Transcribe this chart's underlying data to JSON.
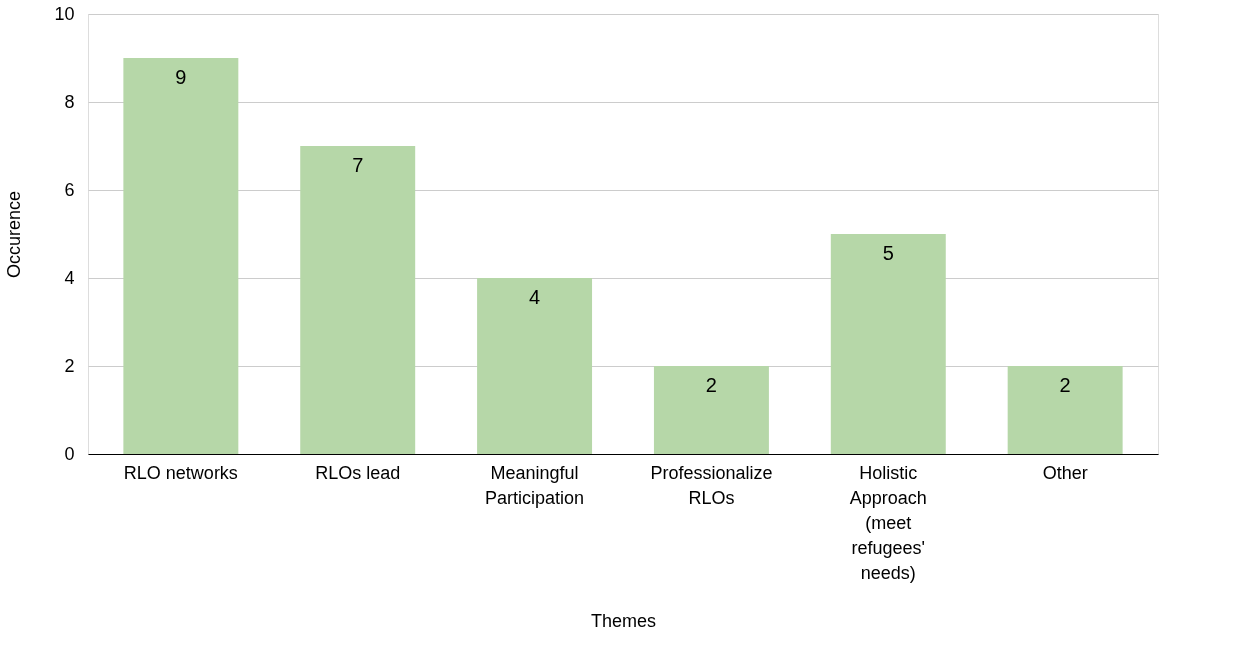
{
  "chart_data": {
    "type": "bar",
    "xlabel": "Themes",
    "ylabel": "Occurence",
    "categories": [
      "RLO networks",
      "RLOs lead",
      "Meaningful Participation",
      "Professionalize RLOs",
      "Holistic Approach (meet refugees' needs)",
      "Other"
    ],
    "values": [
      9,
      7,
      4,
      2,
      5,
      2
    ],
    "color": "#b6d7a8",
    "ylim": [
      0,
      10
    ],
    "yticks": [
      0,
      2,
      4,
      6,
      8,
      10
    ],
    "grid": "y",
    "data_labels": true
  }
}
